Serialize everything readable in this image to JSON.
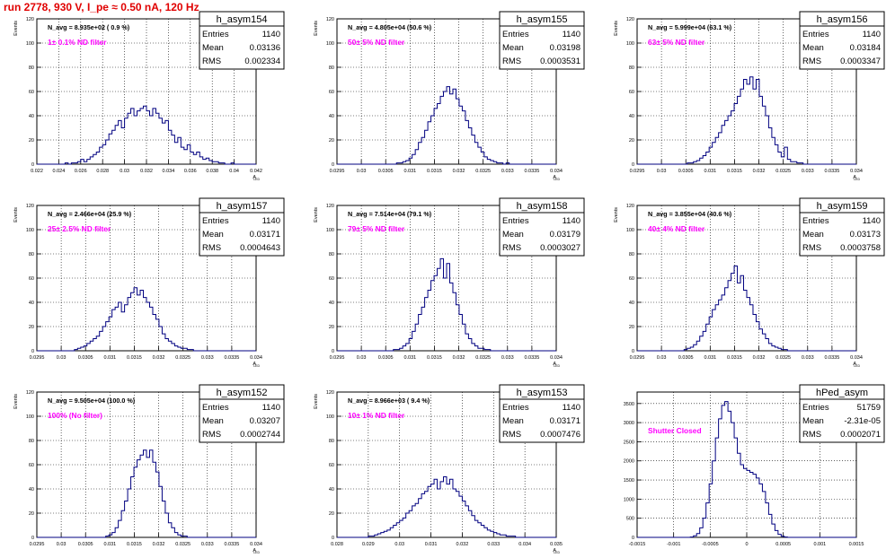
{
  "run_title": "run 2778,   930 V, I_pe ≈ 0.50 nA, 120 Hz",
  "colors": {
    "hist_line": "#000080",
    "annotation_magenta": "#ff00ff",
    "title_red": "#e00000",
    "grid": "#000000"
  },
  "chart_data": [
    {
      "type": "histogram",
      "name": "h_asym154",
      "title_box": "h_asym154",
      "stats": {
        "Entries": "1140",
        "Mean": "0.03136",
        "RMS": "0.002334"
      },
      "navg": "N_avg = 8.935e+02 ( 0.9 %)",
      "note": "1± 0.1% ND filter",
      "ylabel": "Events",
      "xlabel": "A_LED",
      "ylim": [
        0,
        120
      ],
      "xticks": [
        "0.022",
        "0.024",
        "0.026",
        "0.028",
        "0.03",
        "0.032",
        "0.034",
        "0.036",
        "0.038",
        "0.04",
        "0.042"
      ],
      "yticks": [
        "0",
        "20",
        "40",
        "60",
        "80",
        "100",
        "120"
      ],
      "values": [
        0,
        0,
        0,
        0,
        0,
        0,
        0,
        0,
        0,
        1,
        0,
        1,
        1,
        2,
        4,
        2,
        4,
        6,
        8,
        10,
        14,
        16,
        20,
        25,
        28,
        32,
        36,
        30,
        38,
        42,
        46,
        40,
        44,
        46,
        48,
        44,
        40,
        46,
        42,
        38,
        34,
        36,
        28,
        24,
        18,
        22,
        14,
        12,
        16,
        10,
        8,
        10,
        6,
        4,
        5,
        3,
        2,
        2,
        1,
        1,
        0,
        0,
        1,
        0,
        0,
        0,
        0,
        0,
        0,
        0
      ]
    },
    {
      "type": "histogram",
      "name": "h_asym155",
      "title_box": "h_asym155",
      "stats": {
        "Entries": "1140",
        "Mean": "0.03198",
        "RMS": "0.0003531"
      },
      "navg": "N_avg = 4.805e+04 (50.6 %)",
      "note": "50± 5% ND filter",
      "ylabel": "Events",
      "xlabel": "A_LED",
      "ylim": [
        0,
        120
      ],
      "xticks": [
        "0.0295",
        "0.03",
        "0.0305",
        "0.031",
        "0.0315",
        "0.032",
        "0.0325",
        "0.033",
        "0.0335",
        "0.034"
      ],
      "yticks": [
        "0",
        "20",
        "40",
        "60",
        "80",
        "100",
        "120"
      ],
      "values": [
        0,
        0,
        0,
        0,
        0,
        0,
        0,
        0,
        0,
        0,
        0,
        0,
        0,
        0,
        0,
        0,
        0,
        0,
        0,
        1,
        1,
        2,
        3,
        5,
        8,
        12,
        18,
        22,
        28,
        35,
        40,
        46,
        50,
        56,
        60,
        64,
        58,
        62,
        54,
        48,
        44,
        36,
        30,
        24,
        18,
        14,
        10,
        6,
        4,
        3,
        2,
        1,
        1,
        0,
        1,
        0,
        0,
        0,
        0,
        0,
        0,
        0,
        0,
        0,
        0,
        0,
        0,
        0,
        0,
        0
      ]
    },
    {
      "type": "histogram",
      "name": "h_asym156",
      "title_box": "h_asym156",
      "stats": {
        "Entries": "1140",
        "Mean": "0.03184",
        "RMS": "0.0003347"
      },
      "navg": "N_avg = 5.999e+04 (63.1 %)",
      "note": "63± 5% ND filter",
      "ylabel": "Events",
      "xlabel": "A_LED",
      "ylim": [
        0,
        120
      ],
      "xticks": [
        "0.0295",
        "0.03",
        "0.0305",
        "0.031",
        "0.0315",
        "0.032",
        "0.0325",
        "0.033",
        "0.0335",
        "0.034"
      ],
      "yticks": [
        "0",
        "20",
        "40",
        "60",
        "80",
        "100",
        "120"
      ],
      "values": [
        0,
        0,
        0,
        0,
        0,
        0,
        0,
        0,
        0,
        0,
        0,
        0,
        0,
        0,
        0,
        0,
        1,
        1,
        2,
        3,
        5,
        7,
        10,
        14,
        18,
        22,
        26,
        32,
        36,
        40,
        44,
        50,
        56,
        62,
        70,
        66,
        72,
        62,
        70,
        56,
        48,
        40,
        30,
        22,
        16,
        10,
        6,
        14,
        4,
        2,
        2,
        1,
        1,
        0,
        0,
        0,
        0,
        0,
        0,
        0,
        0,
        0,
        0,
        0,
        0,
        0,
        0,
        0,
        0,
        0
      ]
    },
    {
      "type": "histogram",
      "name": "h_asym157",
      "title_box": "h_asym157",
      "stats": {
        "Entries": "1140",
        "Mean": "0.03171",
        "RMS": "0.0004643"
      },
      "navg": "N_avg = 2.466e+04 (25.9 %)",
      "note": "25± 2.5% ND filter",
      "ylabel": "Events",
      "xlabel": "A_LED",
      "ylim": [
        0,
        120
      ],
      "xticks": [
        "0.0295",
        "0.03",
        "0.0305",
        "0.031",
        "0.0315",
        "0.032",
        "0.0325",
        "0.033",
        "0.0335",
        "0.034"
      ],
      "yticks": [
        "0",
        "20",
        "40",
        "60",
        "80",
        "100",
        "120"
      ],
      "values": [
        0,
        0,
        0,
        0,
        0,
        0,
        0,
        0,
        0,
        0,
        0,
        0,
        1,
        2,
        3,
        4,
        6,
        8,
        10,
        12,
        16,
        20,
        24,
        28,
        34,
        36,
        40,
        32,
        38,
        44,
        48,
        52,
        46,
        50,
        44,
        40,
        36,
        30,
        26,
        20,
        14,
        10,
        8,
        6,
        4,
        3,
        2,
        2,
        1,
        1,
        0,
        0,
        0,
        0,
        0,
        0,
        0,
        0,
        0,
        0,
        0,
        0,
        0,
        0,
        0,
        0,
        0,
        0,
        0,
        0
      ]
    },
    {
      "type": "histogram",
      "name": "h_asym158",
      "title_box": "h_asym158",
      "stats": {
        "Entries": "1140",
        "Mean": "0.03179",
        "RMS": "0.0003027"
      },
      "navg": "N_avg = 7.514e+04 (79.1 %)",
      "note": "79± 5% ND filter",
      "ylabel": "Events",
      "xlabel": "A_LED",
      "ylim": [
        0,
        120
      ],
      "xticks": [
        "0.0295",
        "0.03",
        "0.0305",
        "0.031",
        "0.0315",
        "0.032",
        "0.0325",
        "0.033",
        "0.0335",
        "0.034"
      ],
      "yticks": [
        "0",
        "20",
        "40",
        "60",
        "80",
        "100",
        "120"
      ],
      "values": [
        0,
        0,
        0,
        0,
        0,
        0,
        0,
        0,
        0,
        0,
        0,
        0,
        0,
        0,
        0,
        0,
        0,
        0,
        1,
        1,
        2,
        4,
        6,
        10,
        16,
        22,
        30,
        36,
        44,
        50,
        58,
        62,
        68,
        76,
        60,
        72,
        56,
        48,
        38,
        30,
        22,
        14,
        10,
        6,
        4,
        2,
        2,
        1,
        1,
        0,
        0,
        0,
        0,
        0,
        0,
        0,
        0,
        0,
        0,
        0,
        0,
        0,
        0,
        0,
        0,
        0,
        0,
        0,
        0,
        0
      ]
    },
    {
      "type": "histogram",
      "name": "h_asym159",
      "title_box": "h_asym159",
      "stats": {
        "Entries": "1140",
        "Mean": "0.03173",
        "RMS": "0.0003758"
      },
      "navg": "N_avg = 3.855e+04 (40.6 %)",
      "note": "40± 4% ND filter",
      "ylabel": "Events",
      "xlabel": "A_LED",
      "ylim": [
        0,
        120
      ],
      "xticks": [
        "0.0295",
        "0.03",
        "0.0305",
        "0.031",
        "0.0315",
        "0.032",
        "0.0325",
        "0.033",
        "0.0335",
        "0.034"
      ],
      "yticks": [
        "0",
        "20",
        "40",
        "60",
        "80",
        "100",
        "120"
      ],
      "values": [
        0,
        0,
        0,
        0,
        0,
        0,
        0,
        0,
        0,
        0,
        0,
        0,
        0,
        0,
        0,
        1,
        2,
        3,
        5,
        8,
        12,
        16,
        22,
        28,
        34,
        38,
        42,
        46,
        52,
        58,
        64,
        70,
        56,
        62,
        50,
        44,
        38,
        30,
        24,
        18,
        14,
        10,
        6,
        4,
        3,
        2,
        1,
        1,
        0,
        0,
        0,
        0,
        0,
        0,
        0,
        0,
        0,
        0,
        0,
        0,
        0,
        0,
        0,
        0,
        0,
        0,
        0,
        0,
        0,
        0
      ]
    },
    {
      "type": "histogram",
      "name": "h_asym152",
      "title_box": "h_asym152",
      "stats": {
        "Entries": "1140",
        "Mean": "0.03207",
        "RMS": "0.0002744"
      },
      "navg": "N_avg = 9.505e+04 (100.0 %)",
      "note": "100% (No filter)",
      "ylabel": "Events",
      "xlabel": "A_LED",
      "ylim": [
        0,
        120
      ],
      "xticks": [
        "0.0295",
        "0.03",
        "0.0305",
        "0.031",
        "0.0315",
        "0.032",
        "0.0325",
        "0.033",
        "0.0335",
        "0.034"
      ],
      "yticks": [
        "0",
        "20",
        "40",
        "60",
        "80",
        "100",
        "120"
      ],
      "values": [
        0,
        0,
        0,
        0,
        0,
        0,
        0,
        0,
        0,
        0,
        0,
        0,
        0,
        0,
        0,
        0,
        0,
        0,
        0,
        0,
        0,
        0,
        1,
        2,
        4,
        8,
        14,
        22,
        30,
        40,
        50,
        58,
        64,
        68,
        72,
        66,
        72,
        62,
        54,
        42,
        30,
        20,
        12,
        8,
        4,
        2,
        1,
        1,
        0,
        0,
        0,
        0,
        0,
        0,
        0,
        0,
        0,
        0,
        0,
        0,
        0,
        0,
        0,
        0,
        0,
        0,
        0,
        0,
        0,
        0
      ]
    },
    {
      "type": "histogram",
      "name": "h_asym153",
      "title_box": "h_asym153",
      "stats": {
        "Entries": "1140",
        "Mean": "0.03171",
        "RMS": "0.0007476"
      },
      "navg": "N_avg = 8.966e+03 ( 9.4 %)",
      "note": "10± 1% ND filter",
      "ylabel": "Events",
      "xlabel": "A_LED",
      "ylim": [
        0,
        120
      ],
      "xticks": [
        "0.028",
        "0.029",
        "0.03",
        "0.031",
        "0.032",
        "0.033",
        "0.034",
        "0.035"
      ],
      "yticks": [
        "0",
        "20",
        "40",
        "60",
        "80",
        "100",
        "120"
      ],
      "values": [
        0,
        0,
        0,
        0,
        0,
        0,
        0,
        0,
        0,
        0,
        1,
        1,
        2,
        3,
        4,
        5,
        6,
        8,
        10,
        12,
        14,
        16,
        20,
        22,
        26,
        28,
        32,
        36,
        38,
        42,
        44,
        48,
        40,
        46,
        50,
        44,
        48,
        40,
        38,
        34,
        30,
        26,
        22,
        18,
        14,
        12,
        10,
        8,
        6,
        5,
        4,
        3,
        2,
        2,
        1,
        1,
        1,
        0,
        0,
        0,
        0,
        0,
        0,
        0,
        0,
        0,
        0,
        0,
        0,
        0
      ]
    },
    {
      "type": "histogram",
      "name": "hPed_asym",
      "title_box": "hPed_asym",
      "stats": {
        "Entries": "51759",
        "Mean": "-2.31e-05",
        "RMS": "0.0002071"
      },
      "navg": "",
      "note": "Shutter Closed",
      "ylabel": "",
      "xlabel": "",
      "ylim": [
        0,
        3800
      ],
      "xticks": [
        "-0.0015",
        "-0.001",
        "-0.0005",
        "0",
        "0.0005",
        "0.001",
        "0.0015"
      ],
      "yticks": [
        "0",
        "500",
        "1000",
        "1500",
        "2000",
        "2500",
        "3000",
        "3500"
      ],
      "values": [
        0,
        0,
        0,
        0,
        0,
        0,
        0,
        0,
        0,
        0,
        0,
        0,
        0,
        0,
        0,
        0,
        0,
        10,
        40,
        100,
        250,
        500,
        900,
        1400,
        2000,
        2600,
        3100,
        3450,
        3550,
        3300,
        3000,
        2600,
        2200,
        1900,
        1800,
        1750,
        1700,
        1650,
        1550,
        1400,
        1200,
        900,
        600,
        350,
        180,
        80,
        30,
        10,
        0,
        0,
        0,
        0,
        0,
        0,
        0,
        0,
        0,
        0,
        0,
        0,
        0,
        0,
        0,
        0,
        0,
        0,
        0,
        0,
        0,
        0
      ]
    }
  ]
}
